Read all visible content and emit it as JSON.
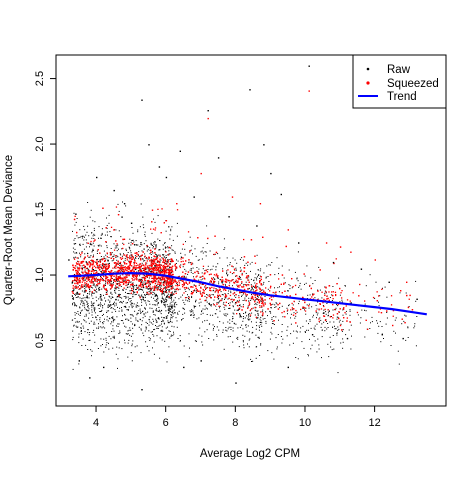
{
  "chart_data": {
    "type": "scatter",
    "title": "",
    "xlabel": "Average Log2 CPM",
    "ylabel": "Quarter-Root Mean Deviance",
    "xlim": [
      2.85,
      14.05
    ],
    "ylim": [
      0.0,
      2.68
    ],
    "x_ticks": [
      4,
      6,
      8,
      10,
      12
    ],
    "y_ticks": [
      0.5,
      1.0,
      1.5,
      2.0,
      2.5
    ],
    "x_tick_labels": [
      "4",
      "6",
      "8",
      "10",
      "12"
    ],
    "y_tick_labels": [
      "0.5",
      "1.0",
      "1.5",
      "2.0",
      "2.5"
    ],
    "grid": false,
    "legend": {
      "position": "top-right",
      "entries": [
        {
          "label": "Raw",
          "symbol": "point",
          "color": "#000000"
        },
        {
          "label": "Squeezed",
          "symbol": "point",
          "color": "#ff0000"
        },
        {
          "label": "Trend",
          "symbol": "line",
          "color": "#0000ff"
        }
      ]
    },
    "series": [
      {
        "name": "Raw",
        "kind": "points",
        "color": "#000000",
        "points": [
          [
            3.4,
            1.47
          ],
          [
            3.6,
            1.3
          ],
          [
            3.5,
            0.35
          ],
          [
            3.8,
            0.22
          ],
          [
            4.2,
            0.3
          ],
          [
            4.5,
            1.65
          ],
          [
            4.0,
            1.75
          ],
          [
            5.3,
            2.34
          ],
          [
            5.5,
            2.0
          ],
          [
            5.8,
            1.83
          ],
          [
            6.0,
            1.75
          ],
          [
            6.4,
            1.95
          ],
          [
            7.2,
            2.26
          ],
          [
            7.5,
            1.9
          ],
          [
            8.4,
            2.42
          ],
          [
            8.8,
            2.0
          ],
          [
            9.0,
            1.78
          ],
          [
            9.3,
            1.62
          ],
          [
            10.1,
            2.6
          ],
          [
            8.0,
            0.18
          ],
          [
            5.3,
            0.13
          ],
          [
            6.5,
            0.3
          ],
          [
            7.0,
            0.35
          ],
          [
            9.5,
            0.3
          ],
          [
            10.2,
            0.55
          ],
          [
            11.2,
            0.52
          ],
          [
            12.2,
            0.55
          ],
          [
            12.8,
            0.52
          ],
          [
            3.3,
            0.95
          ],
          [
            3.2,
            1.12
          ],
          [
            4.8,
            1.55
          ],
          [
            5.0,
            1.4
          ],
          [
            6.8,
            1.6
          ],
          [
            7.8,
            1.45
          ],
          [
            8.6,
            1.38
          ],
          [
            9.8,
            1.25
          ],
          [
            10.8,
            1.1
          ],
          [
            11.6,
            1.05
          ],
          [
            12.4,
            0.95
          ],
          [
            13.2,
            0.82
          ]
        ]
      },
      {
        "name": "Squeezed",
        "kind": "points",
        "color": "#ff0000",
        "points": [
          [
            10.1,
            2.41
          ],
          [
            7.2,
            2.2
          ],
          [
            7.0,
            1.78
          ],
          [
            7.9,
            1.6
          ],
          [
            8.7,
            1.55
          ],
          [
            9.5,
            1.35
          ],
          [
            10.6,
            1.25
          ],
          [
            11.3,
            1.18
          ],
          [
            12.0,
            1.12
          ],
          [
            12.9,
            0.95
          ],
          [
            13.0,
            0.85
          ],
          [
            6.3,
            1.55
          ],
          [
            5.6,
            1.5
          ],
          [
            6.0,
            1.42
          ],
          [
            11.0,
            0.62
          ],
          [
            12.5,
            0.62
          ]
        ]
      },
      {
        "name": "Trend",
        "kind": "line",
        "color": "#0000ff",
        "points": [
          [
            3.2,
            0.99
          ],
          [
            3.6,
            0.995
          ],
          [
            4.0,
            1.0
          ],
          [
            4.5,
            1.01
          ],
          [
            5.0,
            1.015
          ],
          [
            5.5,
            1.01
          ],
          [
            6.0,
            0.995
          ],
          [
            6.5,
            0.97
          ],
          [
            7.0,
            0.945
          ],
          [
            7.5,
            0.915
          ],
          [
            8.0,
            0.89
          ],
          [
            8.5,
            0.865
          ],
          [
            9.0,
            0.845
          ],
          [
            9.5,
            0.83
          ],
          [
            10.0,
            0.815
          ],
          [
            10.5,
            0.8
          ],
          [
            11.0,
            0.785
          ],
          [
            11.5,
            0.77
          ],
          [
            12.0,
            0.755
          ],
          [
            12.5,
            0.74
          ],
          [
            13.0,
            0.72
          ],
          [
            13.5,
            0.7
          ]
        ]
      }
    ]
  }
}
